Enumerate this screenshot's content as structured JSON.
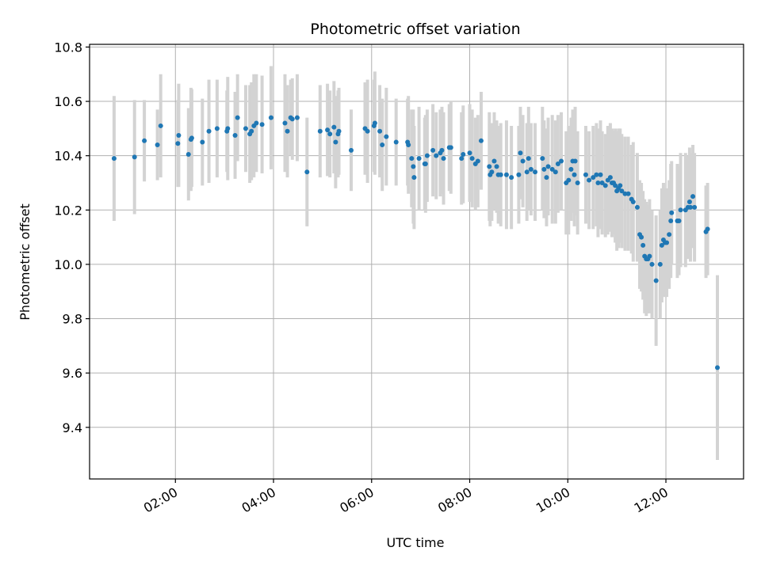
{
  "chart_data": {
    "type": "scatter",
    "title": "Photometric offset variation",
    "xlabel": "UTC time",
    "ylabel": "Photometric offset",
    "x_axis": {
      "kind": "time",
      "ticks": [
        "02:00",
        "04:00",
        "06:00",
        "08:00",
        "10:00",
        "12:00"
      ],
      "range": [
        "00:15",
        "13:35"
      ]
    },
    "y_axis": {
      "ticks": [
        "9.4",
        "9.6",
        "9.8",
        "10.0",
        "10.2",
        "10.4",
        "10.6",
        "10.8"
      ],
      "range": [
        9.21,
        10.81
      ]
    },
    "grid": true,
    "colors": {
      "point": "#1f77b4",
      "errorbar": "#d3d3d3",
      "grid": "#b0b0b0"
    },
    "series": [
      {
        "points": [
          [
            "00:45",
            10.39,
            0.23
          ],
          [
            "01:10",
            10.395,
            0.21
          ],
          [
            "01:22",
            10.455,
            0.15
          ],
          [
            "01:38",
            10.44,
            0.13
          ],
          [
            "01:42",
            10.51,
            0.19
          ],
          [
            "02:03",
            10.445,
            0.16
          ],
          [
            "02:04",
            10.475,
            0.19
          ],
          [
            "02:16",
            10.405,
            0.17
          ],
          [
            "02:19",
            10.46,
            0.19
          ],
          [
            "02:20",
            10.465,
            0.18
          ],
          [
            "02:33",
            10.45,
            0.16
          ],
          [
            "02:41",
            10.49,
            0.19
          ],
          [
            "02:51",
            10.5,
            0.18
          ],
          [
            "03:03",
            10.49,
            0.15
          ],
          [
            "03:04",
            10.5,
            0.19
          ],
          [
            "03:13",
            10.475,
            0.16
          ],
          [
            "03:16",
            10.54,
            0.16
          ],
          [
            "03:26",
            10.5,
            0.16
          ],
          [
            "03:31",
            10.48,
            0.18
          ],
          [
            "03:33",
            10.49,
            0.18
          ],
          [
            "03:36",
            10.51,
            0.19
          ],
          [
            "03:39",
            10.52,
            0.18
          ],
          [
            "03:46",
            10.515,
            0.18
          ],
          [
            "03:57",
            10.54,
            0.19
          ],
          [
            "04:14",
            10.52,
            0.18
          ],
          [
            "04:17",
            10.49,
            0.17
          ],
          [
            "04:21",
            10.54,
            0.14
          ],
          [
            "04:23",
            10.535,
            0.15
          ],
          [
            "04:29",
            10.54,
            0.16
          ],
          [
            "04:41",
            10.34,
            0.2
          ],
          [
            "04:57",
            10.49,
            0.17
          ],
          [
            "05:06",
            10.495,
            0.17
          ],
          [
            "05:09",
            10.48,
            0.16
          ],
          [
            "05:14",
            10.505,
            0.17
          ],
          [
            "05:16",
            10.45,
            0.17
          ],
          [
            "05:19",
            10.48,
            0.16
          ],
          [
            "05:20",
            10.49,
            0.16
          ],
          [
            "05:35",
            10.42,
            0.15
          ],
          [
            "05:52",
            10.5,
            0.17
          ],
          [
            "05:55",
            10.49,
            0.19
          ],
          [
            "06:03",
            10.51,
            0.17
          ],
          [
            "06:04",
            10.52,
            0.19
          ],
          [
            "06:10",
            10.49,
            0.17
          ],
          [
            "06:13",
            10.44,
            0.17
          ],
          [
            "06:18",
            10.47,
            0.18
          ],
          [
            "06:30",
            10.45,
            0.16
          ],
          [
            "06:44",
            10.45,
            0.16
          ],
          [
            "06:45",
            10.44,
            0.18
          ],
          [
            "06:49",
            10.39,
            0.18
          ],
          [
            "06:51",
            10.36,
            0.21
          ],
          [
            "06:52",
            10.32,
            0.19
          ],
          [
            "06:58",
            10.39,
            0.19
          ],
          [
            "07:05",
            10.37,
            0.17
          ],
          [
            "07:06",
            10.37,
            0.18
          ],
          [
            "07:08",
            10.4,
            0.17
          ],
          [
            "07:15",
            10.42,
            0.17
          ],
          [
            "07:19",
            10.4,
            0.16
          ],
          [
            "07:24",
            10.41,
            0.16
          ],
          [
            "07:26",
            10.42,
            0.16
          ],
          [
            "07:28",
            10.39,
            0.17
          ],
          [
            "07:35",
            10.43,
            0.16
          ],
          [
            "07:37",
            10.43,
            0.17
          ],
          [
            "07:50",
            10.39,
            0.17
          ],
          [
            "07:52",
            10.405,
            0.18
          ],
          [
            "08:00",
            10.41,
            0.18
          ],
          [
            "08:03",
            10.39,
            0.18
          ],
          [
            "08:07",
            10.37,
            0.17
          ],
          [
            "08:10",
            10.38,
            0.17
          ],
          [
            "08:14",
            10.455,
            0.18
          ],
          [
            "08:24",
            10.36,
            0.2
          ],
          [
            "08:25",
            10.33,
            0.19
          ],
          [
            "08:27",
            10.34,
            0.18
          ],
          [
            "08:30",
            10.38,
            0.18
          ],
          [
            "08:33",
            10.36,
            0.17
          ],
          [
            "08:35",
            10.33,
            0.18
          ],
          [
            "08:38",
            10.33,
            0.19
          ],
          [
            "08:45",
            10.33,
            0.2
          ],
          [
            "08:51",
            10.32,
            0.19
          ],
          [
            "09:00",
            10.33,
            0.18
          ],
          [
            "09:02",
            10.41,
            0.17
          ],
          [
            "09:05",
            10.38,
            0.17
          ],
          [
            "09:10",
            10.34,
            0.18
          ],
          [
            "09:12",
            10.39,
            0.19
          ],
          [
            "09:15",
            10.35,
            0.17
          ],
          [
            "09:20",
            10.34,
            0.18
          ],
          [
            "09:29",
            10.39,
            0.19
          ],
          [
            "09:31",
            10.35,
            0.18
          ],
          [
            "09:34",
            10.32,
            0.18
          ],
          [
            "09:36",
            10.36,
            0.18
          ],
          [
            "09:41",
            10.35,
            0.2
          ],
          [
            "09:45",
            10.34,
            0.19
          ],
          [
            "09:48",
            10.37,
            0.18
          ],
          [
            "09:52",
            10.38,
            0.18
          ],
          [
            "09:58",
            10.3,
            0.19
          ],
          [
            "10:01",
            10.31,
            0.2
          ],
          [
            "10:04",
            10.35,
            0.19
          ],
          [
            "10:06",
            10.38,
            0.19
          ],
          [
            "10:08",
            10.33,
            0.19
          ],
          [
            "10:09",
            10.38,
            0.2
          ],
          [
            "10:12",
            10.3,
            0.19
          ],
          [
            "10:22",
            10.33,
            0.18
          ],
          [
            "10:26",
            10.31,
            0.18
          ],
          [
            "10:31",
            10.32,
            0.19
          ],
          [
            "10:35",
            10.33,
            0.19
          ],
          [
            "10:37",
            10.3,
            0.2
          ],
          [
            "10:40",
            10.33,
            0.2
          ],
          [
            "10:42",
            10.3,
            0.19
          ],
          [
            "10:46",
            10.29,
            0.19
          ],
          [
            "10:49",
            10.31,
            0.2
          ],
          [
            "10:52",
            10.32,
            0.2
          ],
          [
            "10:54",
            10.3,
            0.2
          ],
          [
            "10:56",
            10.3,
            0.19
          ],
          [
            "10:58",
            10.29,
            0.21
          ],
          [
            "11:00",
            10.27,
            0.22
          ],
          [
            "11:02",
            10.28,
            0.22
          ],
          [
            "11:04",
            10.29,
            0.21
          ],
          [
            "11:06",
            10.27,
            0.21
          ],
          [
            "11:10",
            10.26,
            0.21
          ],
          [
            "11:14",
            10.26,
            0.21
          ],
          [
            "11:18",
            10.24,
            0.2
          ],
          [
            "11:20",
            10.23,
            0.22
          ],
          [
            "11:25",
            10.21,
            0.2
          ],
          [
            "11:28",
            10.11,
            0.2
          ],
          [
            "11:30",
            10.1,
            0.2
          ],
          [
            "11:32",
            10.07,
            0.2
          ],
          [
            "11:34",
            10.03,
            0.21
          ],
          [
            "11:36",
            10.02,
            0.21
          ],
          [
            "11:38",
            10.02,
            0.2
          ],
          [
            "11:40",
            10.03,
            0.21
          ],
          [
            "11:43",
            10.0,
            0.2
          ],
          [
            "11:48",
            9.94,
            0.24
          ],
          [
            "11:53",
            10.0,
            0.2
          ],
          [
            "11:55",
            10.07,
            0.21
          ],
          [
            "11:57",
            10.09,
            0.21
          ],
          [
            "11:59",
            10.08,
            0.2
          ],
          [
            "12:01",
            10.08,
            0.2
          ],
          [
            "12:04",
            10.11,
            0.2
          ],
          [
            "12:06",
            10.16,
            0.21
          ],
          [
            "12:07",
            10.19,
            0.19
          ],
          [
            "12:14",
            10.16,
            0.21
          ],
          [
            "12:16",
            10.16,
            0.2
          ],
          [
            "12:18",
            10.2,
            0.21
          ],
          [
            "12:24",
            10.2,
            0.21
          ],
          [
            "12:27",
            10.21,
            0.19
          ],
          [
            "12:29",
            10.23,
            0.2
          ],
          [
            "12:30",
            10.21,
            0.2
          ],
          [
            "12:33",
            10.25,
            0.19
          ],
          [
            "12:35",
            10.21,
            0.2
          ],
          [
            "12:49",
            10.12,
            0.17
          ],
          [
            "12:51",
            10.13,
            0.17
          ],
          [
            "13:03",
            9.62,
            0.34
          ]
        ]
      }
    ]
  }
}
